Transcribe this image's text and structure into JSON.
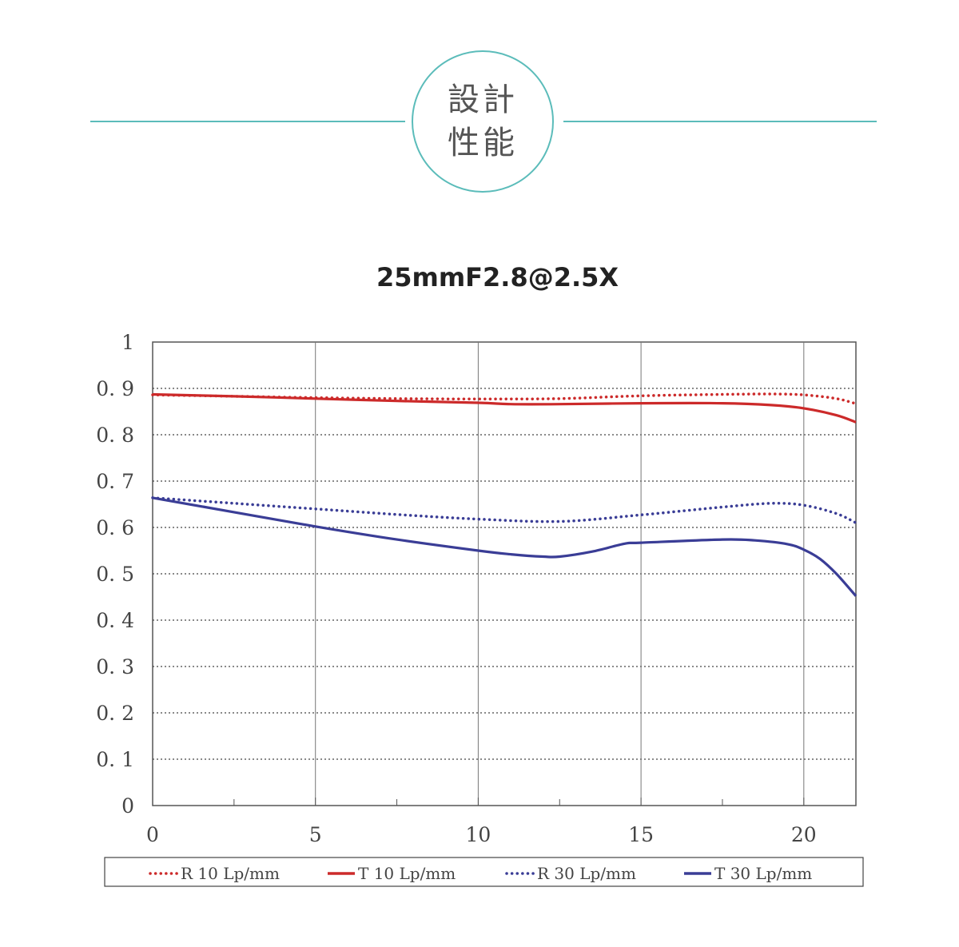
{
  "header": {
    "badge_line1": "設計",
    "badge_line2": "性能",
    "accent": "#5bbcba"
  },
  "chart_data": {
    "type": "line",
    "title": "25mmF2.8@2.5X",
    "xlabel": "",
    "ylabel": "",
    "xlim": [
      0,
      21.6
    ],
    "ylim": [
      0,
      1
    ],
    "x_ticks": [
      0,
      5,
      10,
      15,
      20
    ],
    "y_ticks": [
      0,
      0.1,
      0.2,
      0.3,
      0.4,
      0.5,
      0.6,
      0.7,
      0.8,
      0.9,
      1
    ],
    "x_tick_labels": [
      "0",
      "5",
      "10",
      "15",
      "20"
    ],
    "y_tick_labels": [
      "0",
      "0. 1",
      "0. 2",
      "0. 3",
      "0. 4",
      "0. 5",
      "0. 6",
      "0. 7",
      "0. 8",
      "0. 9",
      "1"
    ],
    "grid": {
      "vertical": "solid",
      "horizontal": "dotted"
    },
    "legend_position": "bottom",
    "series": [
      {
        "name": "R 10 Lp/mm",
        "color": "#cc2a2a",
        "style": "dotted",
        "x": [
          0,
          2.5,
          5,
          7.5,
          10,
          12.5,
          15,
          17.5,
          19,
          20,
          21,
          21.6
        ],
        "y": [
          0.886,
          0.883,
          0.88,
          0.878,
          0.877,
          0.878,
          0.884,
          0.887,
          0.888,
          0.886,
          0.878,
          0.867
        ]
      },
      {
        "name": "T 10 Lp/mm",
        "color": "#cc2a2a",
        "style": "solid",
        "x": [
          0,
          2.5,
          5,
          7.5,
          10,
          11,
          12.5,
          15,
          17.5,
          19,
          20,
          21,
          21.6
        ],
        "y": [
          0.887,
          0.883,
          0.878,
          0.873,
          0.869,
          0.866,
          0.866,
          0.868,
          0.868,
          0.864,
          0.857,
          0.842,
          0.827
        ]
      },
      {
        "name": "R 30 Lp/mm",
        "color": "#3a3d96",
        "style": "dotted",
        "x": [
          0,
          2.5,
          5,
          7.5,
          10,
          12.5,
          15,
          17.5,
          19,
          20,
          21,
          21.6
        ],
        "y": [
          0.664,
          0.652,
          0.64,
          0.628,
          0.618,
          0.613,
          0.627,
          0.644,
          0.652,
          0.648,
          0.63,
          0.61
        ]
      },
      {
        "name": "T 30 Lp/mm",
        "color": "#3a3d96",
        "style": "solid",
        "x": [
          0,
          2.5,
          5,
          7.5,
          10,
          11,
          12,
          12.5,
          13.5,
          14.5,
          15,
          17.5,
          18.5,
          19.5,
          20,
          20.5,
          21,
          21.6
        ],
        "y": [
          0.664,
          0.633,
          0.602,
          0.574,
          0.55,
          0.542,
          0.537,
          0.537,
          0.548,
          0.565,
          0.567,
          0.574,
          0.572,
          0.564,
          0.552,
          0.532,
          0.5,
          0.452
        ]
      }
    ]
  }
}
